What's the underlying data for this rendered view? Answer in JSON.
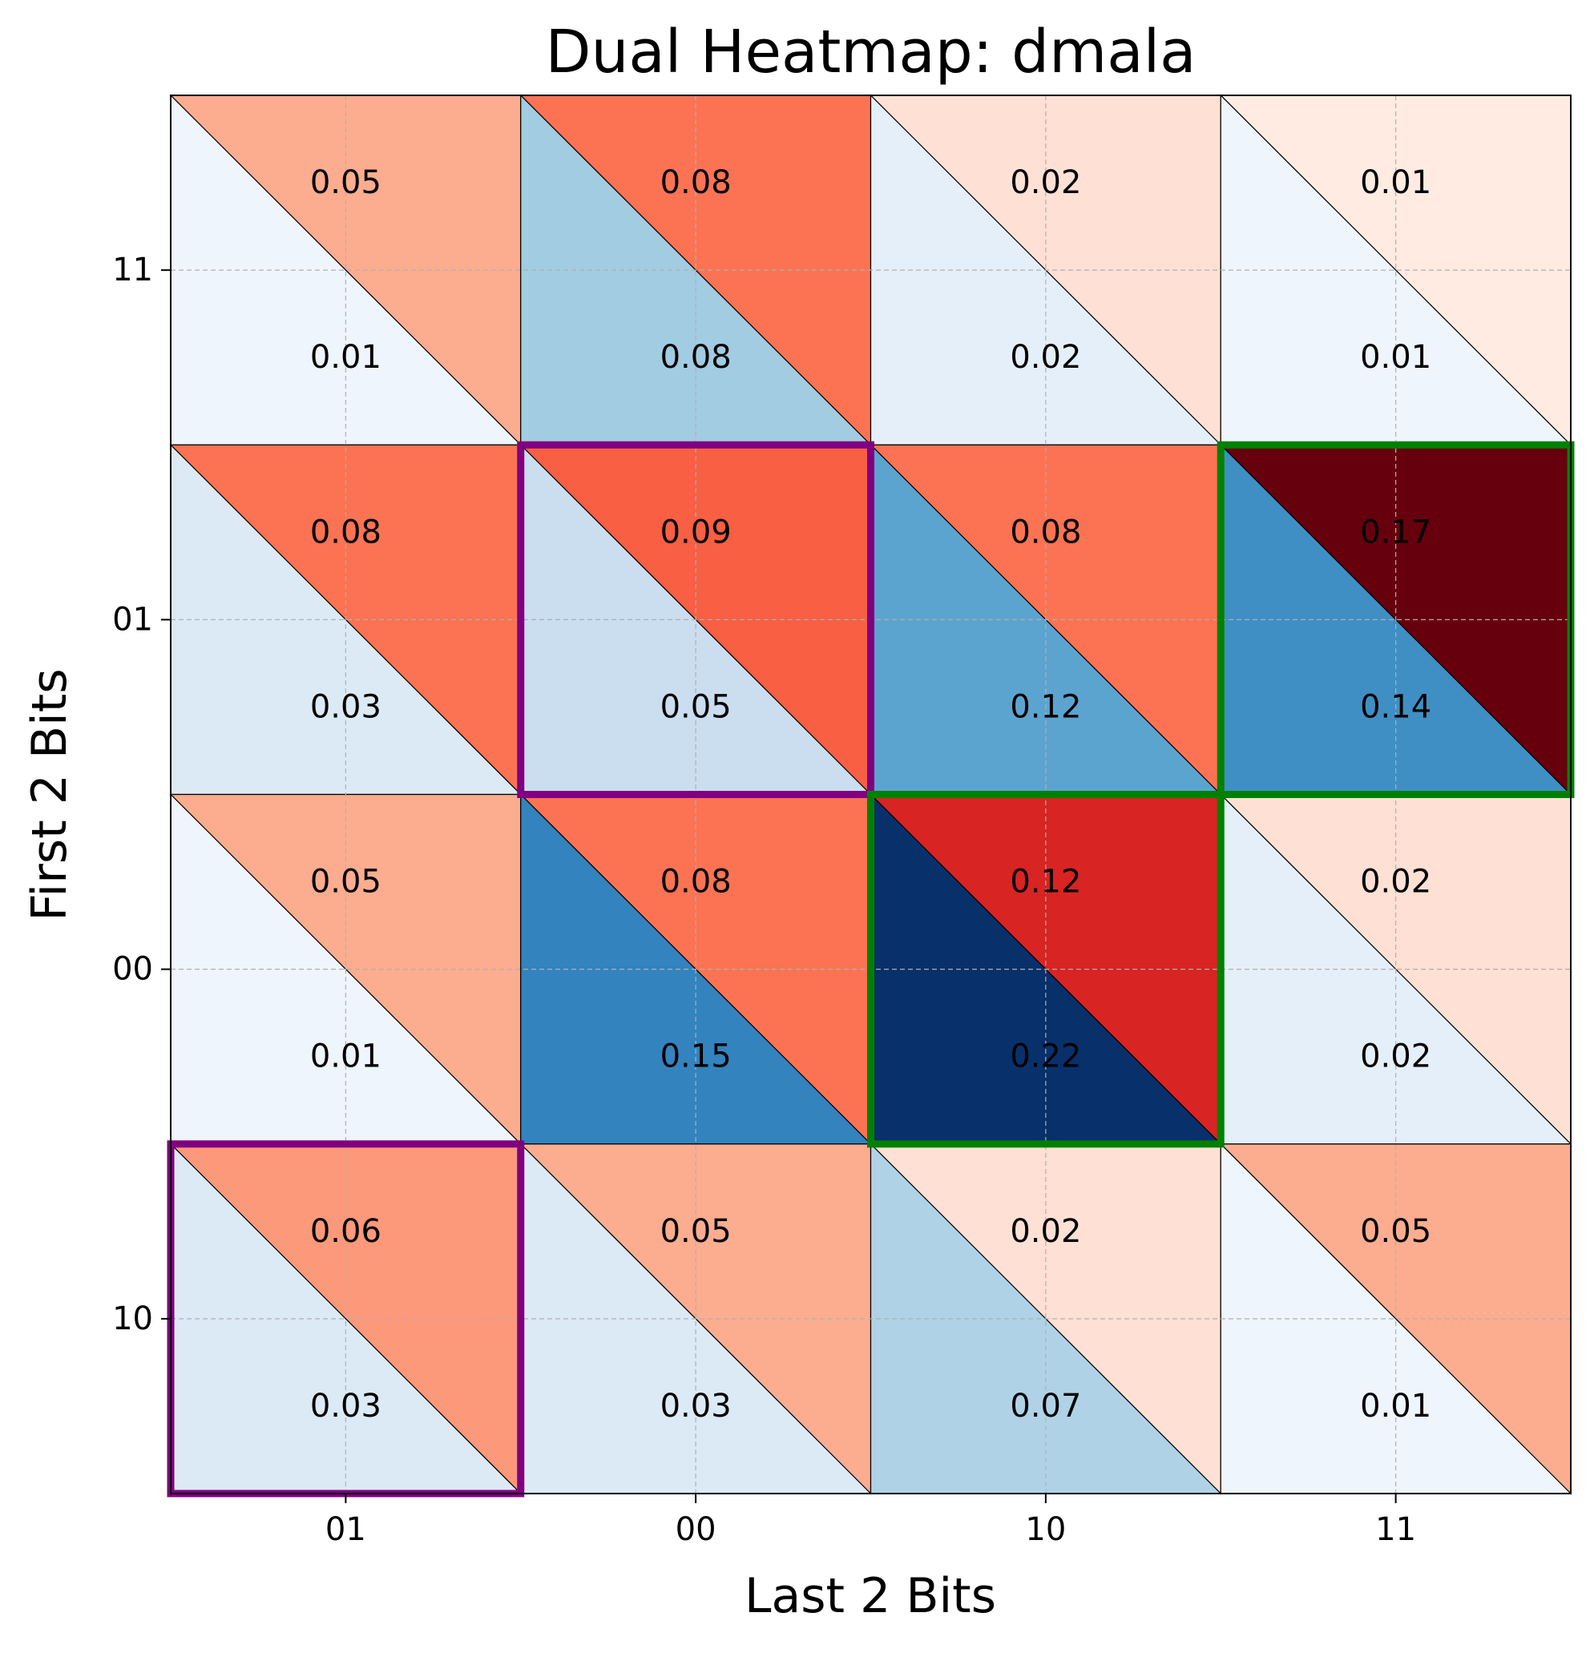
{
  "chart_data": {
    "type": "heatmap",
    "variant": "dual-triangle",
    "title": "Dual Heatmap: dmala",
    "xlabel": "Last 2 Bits",
    "ylabel": "First 2 Bits",
    "x_categories": [
      "01",
      "00",
      "10",
      "11"
    ],
    "y_categories": [
      "11",
      "01",
      "00",
      "10"
    ],
    "series": [
      {
        "name": "upper",
        "colormap": "Reds",
        "vmin": 0,
        "vmax": 0.17,
        "values": [
          [
            0.05,
            0.08,
            0.02,
            0.01
          ],
          [
            0.08,
            0.09,
            0.08,
            0.17
          ],
          [
            0.05,
            0.08,
            0.12,
            0.02
          ],
          [
            0.06,
            0.05,
            0.02,
            0.05
          ]
        ]
      },
      {
        "name": "lower",
        "colormap": "Blues",
        "vmin": 0,
        "vmax": 0.22,
        "values": [
          [
            0.01,
            0.08,
            0.02,
            0.01
          ],
          [
            0.03,
            0.05,
            0.12,
            0.14
          ],
          [
            0.01,
            0.15,
            0.22,
            0.02
          ],
          [
            0.03,
            0.03,
            0.07,
            0.01
          ]
        ]
      }
    ],
    "highlights": [
      {
        "row": "01",
        "col": "00",
        "color": "#800080"
      },
      {
        "row": "10",
        "col": "01",
        "color": "#800080"
      },
      {
        "row": "01",
        "col": "11",
        "color": "#008000"
      },
      {
        "row": "00",
        "col": "10",
        "color": "#008000"
      }
    ],
    "grid": true
  }
}
